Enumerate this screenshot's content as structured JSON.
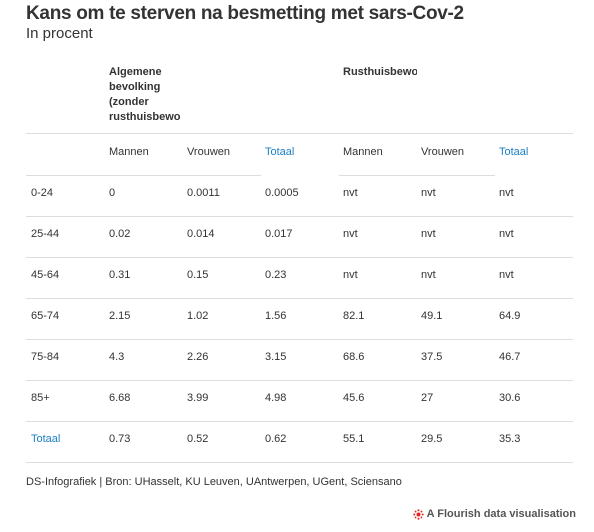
{
  "header": {
    "title": "Kans om te sterven na besmetting met sars-Cov-2",
    "subtitle": "In procent"
  },
  "colors": {
    "text": "#333333",
    "link": "#1a7fc4",
    "divider": "#dddddd",
    "flourish_red": "#e4261e"
  },
  "chart_data": {
    "type": "table",
    "group_headers": [
      {
        "label_lines": [
          "Algemene",
          "bevolking",
          "(zonder",
          "rusthuisbewo"
        ]
      },
      {
        "label_lines": [
          "Rusthuisbewo"
        ]
      }
    ],
    "columns": [
      "",
      "Mannen",
      "Vrouwen",
      "Totaal",
      "Mannen",
      "Vrouwen",
      "Totaal"
    ],
    "rows": [
      [
        "0-24",
        "0",
        "0.0011",
        "0.0005",
        "nvt",
        "nvt",
        "nvt"
      ],
      [
        "25-44",
        "0.02",
        "0.014",
        "0.017",
        "nvt",
        "nvt",
        "nvt"
      ],
      [
        "45-64",
        "0.31",
        "0.15",
        "0.23",
        "nvt",
        "nvt",
        "nvt"
      ],
      [
        "65-74",
        "2.15",
        "1.02",
        "1.56",
        "82.1",
        "49.1",
        "64.9"
      ],
      [
        "75-84",
        "4.3",
        "2.26",
        "3.15",
        "68.6",
        "37.5",
        "46.7"
      ],
      [
        "85+",
        "6.68",
        "3.99",
        "4.98",
        "45.6",
        "27",
        "30.6"
      ],
      [
        "Totaal",
        "0.73",
        "0.52",
        "0.62",
        "55.1",
        "29.5",
        "35.3"
      ]
    ]
  },
  "footer": {
    "source": "DS-Infografiek | Bron: UHasselt, KU Leuven, UAntwerpen, UGent, Sciensano",
    "flourish_label": "A Flourish data visualisation",
    "flourish_icon": "flourish-logo-icon"
  }
}
